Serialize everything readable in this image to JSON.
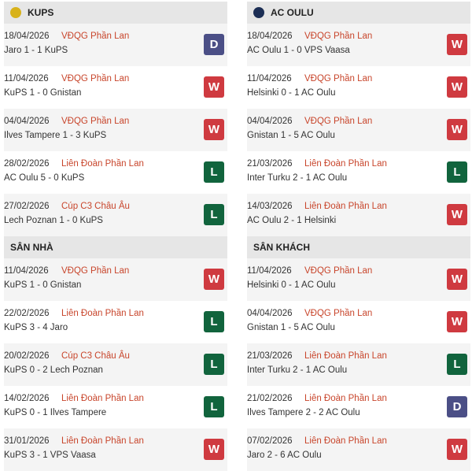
{
  "colors": {
    "W": "#cf3a40",
    "D": "#4b4f86",
    "L": "#11643d",
    "league": "#c8452b"
  },
  "sections": [
    {
      "title": "KUPS",
      "icon": "kups-logo-icon",
      "rows": [
        {
          "date": "18/04/2026",
          "league": "VĐQG Phần Lan",
          "score": "Jaro 1 - 1 KuPS",
          "result": "D"
        },
        {
          "date": "11/04/2026",
          "league": "VĐQG Phần Lan",
          "score": "KuPS 1 - 0 Gnistan",
          "result": "W"
        },
        {
          "date": "04/04/2026",
          "league": "VĐQG Phần Lan",
          "score": "Ilves Tampere 1 - 3 KuPS",
          "result": "W"
        },
        {
          "date": "28/02/2026",
          "league": "Liên Đoàn Phần Lan",
          "score": "AC Oulu 5 - 0 KuPS",
          "result": "L"
        },
        {
          "date": "27/02/2026",
          "league": "Cúp C3 Châu Âu",
          "score": "Lech Poznan 1 - 0 KuPS",
          "result": "L"
        }
      ]
    },
    {
      "title": "AC OULU",
      "icon": "ac-oulu-logo-icon",
      "rows": [
        {
          "date": "18/04/2026",
          "league": "VĐQG Phần Lan",
          "score": "AC Oulu 1 - 0 VPS Vaasa",
          "result": "W"
        },
        {
          "date": "11/04/2026",
          "league": "VĐQG Phần Lan",
          "score": "Helsinki 0 - 1 AC Oulu",
          "result": "W"
        },
        {
          "date": "04/04/2026",
          "league": "VĐQG Phần Lan",
          "score": "Gnistan 1 - 5 AC Oulu",
          "result": "W"
        },
        {
          "date": "21/03/2026",
          "league": "Liên Đoàn Phần Lan",
          "score": "Inter Turku 2 - 1 AC Oulu",
          "result": "L"
        },
        {
          "date": "14/03/2026",
          "league": "Liên Đoàn Phần Lan",
          "score": "AC Oulu 2 - 1 Helsinki",
          "result": "W"
        }
      ]
    },
    {
      "title": "SÂN NHÀ",
      "rows": [
        {
          "date": "11/04/2026",
          "league": "VĐQG Phần Lan",
          "score": "KuPS 1 - 0 Gnistan",
          "result": "W"
        },
        {
          "date": "22/02/2026",
          "league": "Liên Đoàn Phần Lan",
          "score": "KuPS 3 - 4 Jaro",
          "result": "L"
        },
        {
          "date": "20/02/2026",
          "league": "Cúp C3 Châu Âu",
          "score": "KuPS 0 - 2 Lech Poznan",
          "result": "L"
        },
        {
          "date": "14/02/2026",
          "league": "Liên Đoàn Phần Lan",
          "score": "KuPS 0 - 1 Ilves Tampere",
          "result": "L"
        },
        {
          "date": "31/01/2026",
          "league": "Liên Đoàn Phần Lan",
          "score": "KuPS 3 - 1 VPS Vaasa",
          "result": "W"
        }
      ]
    },
    {
      "title": "SÂN KHÁCH",
      "rows": [
        {
          "date": "11/04/2026",
          "league": "VĐQG Phần Lan",
          "score": "Helsinki 0 - 1 AC Oulu",
          "result": "W"
        },
        {
          "date": "04/04/2026",
          "league": "VĐQG Phần Lan",
          "score": "Gnistan 1 - 5 AC Oulu",
          "result": "W"
        },
        {
          "date": "21/03/2026",
          "league": "Liên Đoàn Phần Lan",
          "score": "Inter Turku 2 - 1 AC Oulu",
          "result": "L"
        },
        {
          "date": "21/02/2026",
          "league": "Liên Đoàn Phần Lan",
          "score": "Ilves Tampere 2 - 2 AC Oulu",
          "result": "D"
        },
        {
          "date": "07/02/2026",
          "league": "Liên Đoàn Phần Lan",
          "score": "Jaro 2 - 6 AC Oulu",
          "result": "W"
        }
      ]
    }
  ]
}
